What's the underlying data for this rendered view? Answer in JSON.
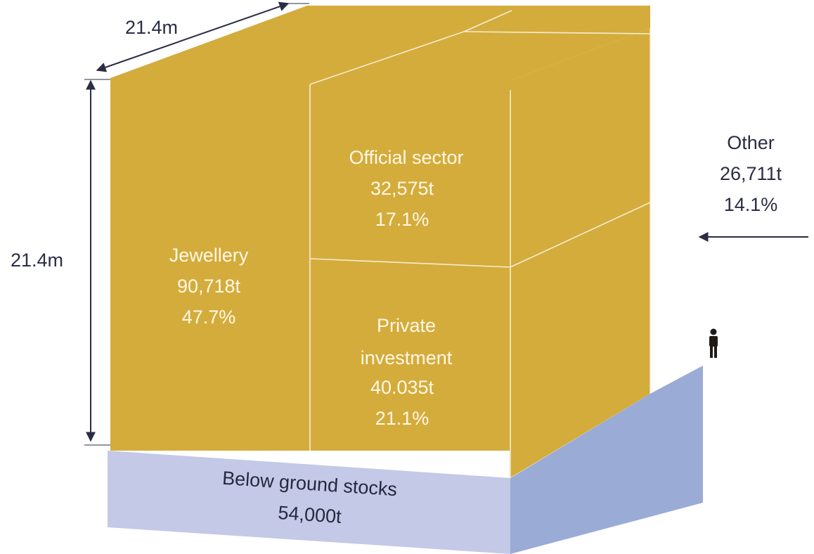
{
  "diagram": {
    "dimensions": {
      "depth_label": "21.4m",
      "height_label": "21.4m"
    },
    "segments": [
      {
        "id": "jewellery",
        "name": "Jewellery",
        "tonnes": "90,718t",
        "share": "47.7%"
      },
      {
        "id": "official",
        "name": "Official sector",
        "tonnes": "32,575t",
        "share": "17.1%"
      },
      {
        "id": "private",
        "name_line1": "Private",
        "name_line2": "investment",
        "tonnes": "40.035t",
        "share": "21.1%"
      },
      {
        "id": "other",
        "name": "Other",
        "tonnes": "26,711t",
        "share": "14.1%"
      }
    ],
    "below_ground": {
      "label": "Below ground stocks",
      "tonnes": "54,000t"
    },
    "colors": {
      "gold": "#d4ac3c",
      "gold_side": "#d4ac3c",
      "stock_front": "#c3c9e6",
      "stock_side": "#9aabd6",
      "line": "#f5ecd0",
      "arrow": "#2b2c45"
    },
    "icons": {
      "scale_figure": "person-icon"
    }
  }
}
